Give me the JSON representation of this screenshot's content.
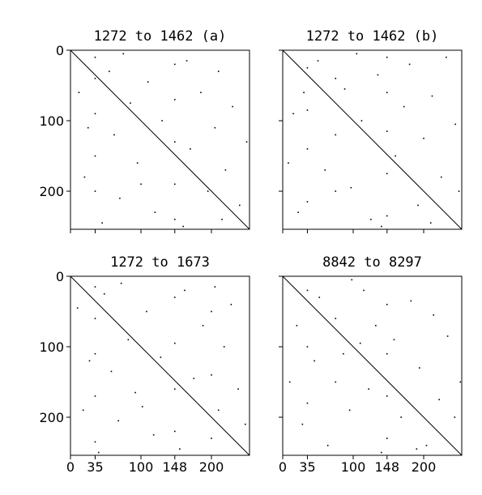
{
  "chart_data": [
    {
      "type": "scatter",
      "title": "1272 to 1462 (a)",
      "xlim": [
        0,
        254
      ],
      "ylim": [
        254,
        0
      ],
      "xticks": [
        0,
        35,
        100,
        148,
        200
      ],
      "yticks": [
        0,
        100,
        200
      ],
      "show_xticklabels": false,
      "show_yticklabels": true,
      "color": "#000000",
      "x": [
        35,
        35,
        35,
        35,
        35,
        148,
        148,
        148,
        148,
        148,
        12,
        20,
        55,
        62,
        70,
        85,
        95,
        110,
        120,
        130,
        165,
        170,
        185,
        195,
        205,
        210,
        220,
        230,
        240,
        250,
        45,
        100,
        75,
        160,
        25,
        215
      ],
      "y": [
        10,
        40,
        90,
        150,
        200,
        20,
        70,
        130,
        190,
        240,
        60,
        180,
        30,
        120,
        210,
        75,
        160,
        45,
        230,
        100,
        15,
        140,
        60,
        200,
        110,
        30,
        170,
        80,
        220,
        130,
        245,
        190,
        5,
        250,
        110,
        240
      ],
      "line_x": [
        0,
        254
      ],
      "line_y": [
        0,
        254
      ]
    },
    {
      "type": "scatter",
      "title": "1272 to 1462 (b)",
      "xlim": [
        0,
        254
      ],
      "ylim": [
        254,
        0
      ],
      "xticks": [
        0,
        35,
        100,
        148,
        200
      ],
      "yticks": [
        0,
        100,
        200
      ],
      "show_xticklabels": false,
      "show_yticklabels": false,
      "color": "#000000",
      "x": [
        35,
        35,
        35,
        35,
        148,
        148,
        148,
        148,
        148,
        75,
        75,
        75,
        15,
        22,
        50,
        60,
        88,
        97,
        112,
        125,
        135,
        160,
        172,
        180,
        192,
        200,
        212,
        225,
        232,
        245,
        8,
        105,
        140,
        210,
        30,
        250
      ],
      "y": [
        25,
        85,
        140,
        215,
        10,
        60,
        115,
        175,
        235,
        40,
        120,
        200,
        90,
        230,
        15,
        170,
        55,
        195,
        100,
        240,
        35,
        150,
        80,
        20,
        220,
        125,
        65,
        180,
        10,
        105,
        160,
        5,
        250,
        245,
        60,
        200
      ],
      "line_x": [
        0,
        254
      ],
      "line_y": [
        0,
        254
      ]
    },
    {
      "type": "scatter",
      "title": "1272 to 1673",
      "xlim": [
        0,
        254
      ],
      "ylim": [
        254,
        0
      ],
      "xticks": [
        0,
        35,
        100,
        148,
        200
      ],
      "yticks": [
        0,
        100,
        200
      ],
      "show_xticklabels": true,
      "show_yticklabels": true,
      "color": "#000000",
      "x": [
        35,
        35,
        35,
        35,
        35,
        148,
        148,
        148,
        148,
        200,
        200,
        200,
        10,
        18,
        48,
        58,
        68,
        82,
        92,
        108,
        118,
        128,
        162,
        175,
        188,
        210,
        218,
        228,
        238,
        248,
        40,
        102,
        72,
        155,
        27,
        205
      ],
      "y": [
        15,
        60,
        110,
        170,
        235,
        30,
        95,
        160,
        220,
        50,
        140,
        230,
        45,
        190,
        25,
        135,
        205,
        90,
        165,
        50,
        225,
        115,
        20,
        145,
        70,
        190,
        100,
        40,
        160,
        210,
        250,
        185,
        10,
        245,
        120,
        15
      ],
      "line_x": [
        0,
        254
      ],
      "line_y": [
        0,
        254
      ]
    },
    {
      "type": "scatter",
      "title": "8842 to 8297",
      "xlim": [
        0,
        254
      ],
      "ylim": [
        254,
        0
      ],
      "xticks": [
        0,
        35,
        100,
        148,
        200
      ],
      "yticks": [
        0,
        100,
        200
      ],
      "show_xticklabels": true,
      "show_yticklabels": false,
      "color": "#000000",
      "x": [
        35,
        35,
        35,
        148,
        148,
        148,
        148,
        75,
        75,
        20,
        28,
        52,
        64,
        86,
        95,
        115,
        122,
        132,
        158,
        168,
        182,
        194,
        204,
        214,
        222,
        234,
        244,
        252,
        10,
        98,
        140,
        190,
        45,
        110
      ],
      "y": [
        20,
        100,
        180,
        40,
        110,
        170,
        230,
        60,
        150,
        70,
        210,
        30,
        240,
        110,
        190,
        20,
        160,
        70,
        90,
        200,
        35,
        130,
        240,
        55,
        175,
        85,
        200,
        150,
        150,
        5,
        250,
        245,
        120,
        95
      ],
      "line_x": [
        0,
        254
      ],
      "line_y": [
        0,
        254
      ]
    }
  ]
}
